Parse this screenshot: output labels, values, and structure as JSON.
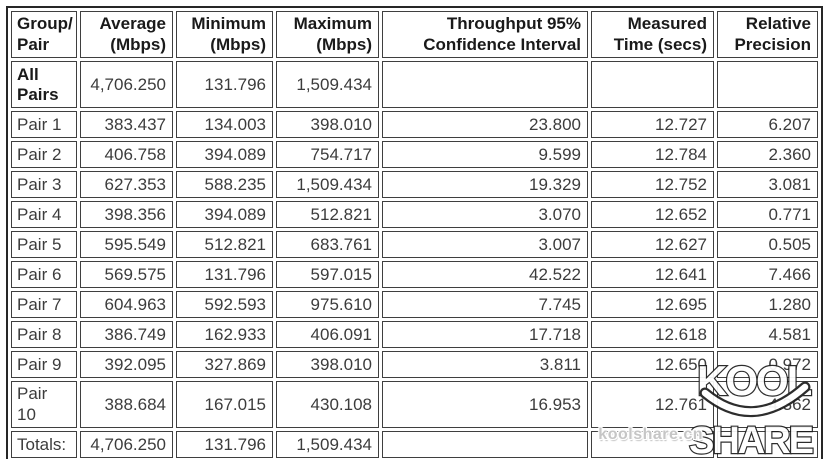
{
  "table": {
    "column_keys": [
      "label",
      "avg",
      "min",
      "max",
      "ci",
      "time",
      "prec"
    ],
    "headers": [
      {
        "label": "Group/\nPair"
      },
      {
        "label": "Average\n(Mbps)"
      },
      {
        "label": "Minimum\n(Mbps)"
      },
      {
        "label": "Maximum\n(Mbps)"
      },
      {
        "label": "Throughput 95%\nConfidence Interval"
      },
      {
        "label": "Measured\nTime (secs)"
      },
      {
        "label": "Relative\nPrecision"
      }
    ],
    "rows": [
      {
        "label": "All Pairs",
        "bold": true,
        "avg": "4,706.250",
        "min": "131.796",
        "max": "1,509.434",
        "ci": "",
        "time": "",
        "prec": ""
      },
      {
        "label": "Pair 1",
        "bold": false,
        "avg": "383.437",
        "min": "134.003",
        "max": "398.010",
        "ci": "23.800",
        "time": "12.727",
        "prec": "6.207"
      },
      {
        "label": "Pair 2",
        "bold": false,
        "avg": "406.758",
        "min": "394.089",
        "max": "754.717",
        "ci": "9.599",
        "time": "12.784",
        "prec": "2.360"
      },
      {
        "label": "Pair 3",
        "bold": false,
        "avg": "627.353",
        "min": "588.235",
        "max": "1,509.434",
        "ci": "19.329",
        "time": "12.752",
        "prec": "3.081"
      },
      {
        "label": "Pair 4",
        "bold": false,
        "avg": "398.356",
        "min": "394.089",
        "max": "512.821",
        "ci": "3.070",
        "time": "12.652",
        "prec": "0.771"
      },
      {
        "label": "Pair 5",
        "bold": false,
        "avg": "595.549",
        "min": "512.821",
        "max": "683.761",
        "ci": "3.007",
        "time": "12.627",
        "prec": "0.505"
      },
      {
        "label": "Pair 6",
        "bold": false,
        "avg": "569.575",
        "min": "131.796",
        "max": "597.015",
        "ci": "42.522",
        "time": "12.641",
        "prec": "7.466"
      },
      {
        "label": "Pair 7",
        "bold": false,
        "avg": "604.963",
        "min": "592.593",
        "max": "975.610",
        "ci": "7.745",
        "time": "12.695",
        "prec": "1.280"
      },
      {
        "label": "Pair 8",
        "bold": false,
        "avg": "386.749",
        "min": "162.933",
        "max": "406.091",
        "ci": "17.718",
        "time": "12.618",
        "prec": "4.581"
      },
      {
        "label": "Pair 9",
        "bold": false,
        "avg": "392.095",
        "min": "327.869",
        "max": "398.010",
        "ci": "3.811",
        "time": "12.650",
        "prec": "0.972"
      },
      {
        "label": "Pair 10",
        "bold": false,
        "avg": "388.684",
        "min": "167.015",
        "max": "430.108",
        "ci": "16.953",
        "time": "12.761",
        "prec": "4.362"
      },
      {
        "label": "Totals:",
        "bold": false,
        "avg": "4,706.250",
        "min": "131.796",
        "max": "1,509.434",
        "ci": "",
        "time": "",
        "prec": ""
      }
    ]
  },
  "watermark": {
    "logo_line1": "KOOL",
    "logo_line2": "SHARE",
    "site_text": "koolshare.cn"
  },
  "colors": {
    "cell_text": "#3c3c3c",
    "header_text": "#1a1a1a",
    "border": "#3f3f3f",
    "watermark_fill": "#ffffff",
    "watermark_outline": "#1c1c1c"
  }
}
